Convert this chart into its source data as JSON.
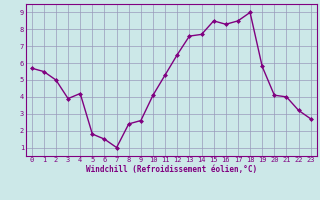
{
  "x": [
    0,
    1,
    2,
    3,
    4,
    5,
    6,
    7,
    8,
    9,
    10,
    11,
    12,
    13,
    14,
    15,
    16,
    17,
    18,
    19,
    20,
    21,
    22,
    23
  ],
  "y": [
    5.7,
    5.5,
    5.0,
    3.9,
    4.2,
    1.8,
    1.5,
    1.0,
    2.4,
    2.6,
    4.1,
    5.3,
    6.5,
    7.6,
    7.7,
    8.5,
    8.3,
    8.5,
    9.0,
    5.8,
    4.1,
    4.0,
    3.2,
    2.7
  ],
  "line_color": "#800080",
  "marker": "D",
  "marker_size": 2,
  "line_width": 1.0,
  "background_color": "#cce8e8",
  "grid_color": "#9999bb",
  "xlabel": "Windchill (Refroidissement éolien,°C)",
  "xlabel_fontsize": 5.5,
  "xlim": [
    -0.5,
    23.5
  ],
  "ylim": [
    0.5,
    9.5
  ],
  "yticks": [
    1,
    2,
    3,
    4,
    5,
    6,
    7,
    8,
    9
  ],
  "xticks": [
    0,
    1,
    2,
    3,
    4,
    5,
    6,
    7,
    8,
    9,
    10,
    11,
    12,
    13,
    14,
    15,
    16,
    17,
    18,
    19,
    20,
    21,
    22,
    23
  ],
  "tick_fontsize": 5,
  "tick_color": "#800080",
  "label_color": "#800080",
  "spine_color": "#800080"
}
